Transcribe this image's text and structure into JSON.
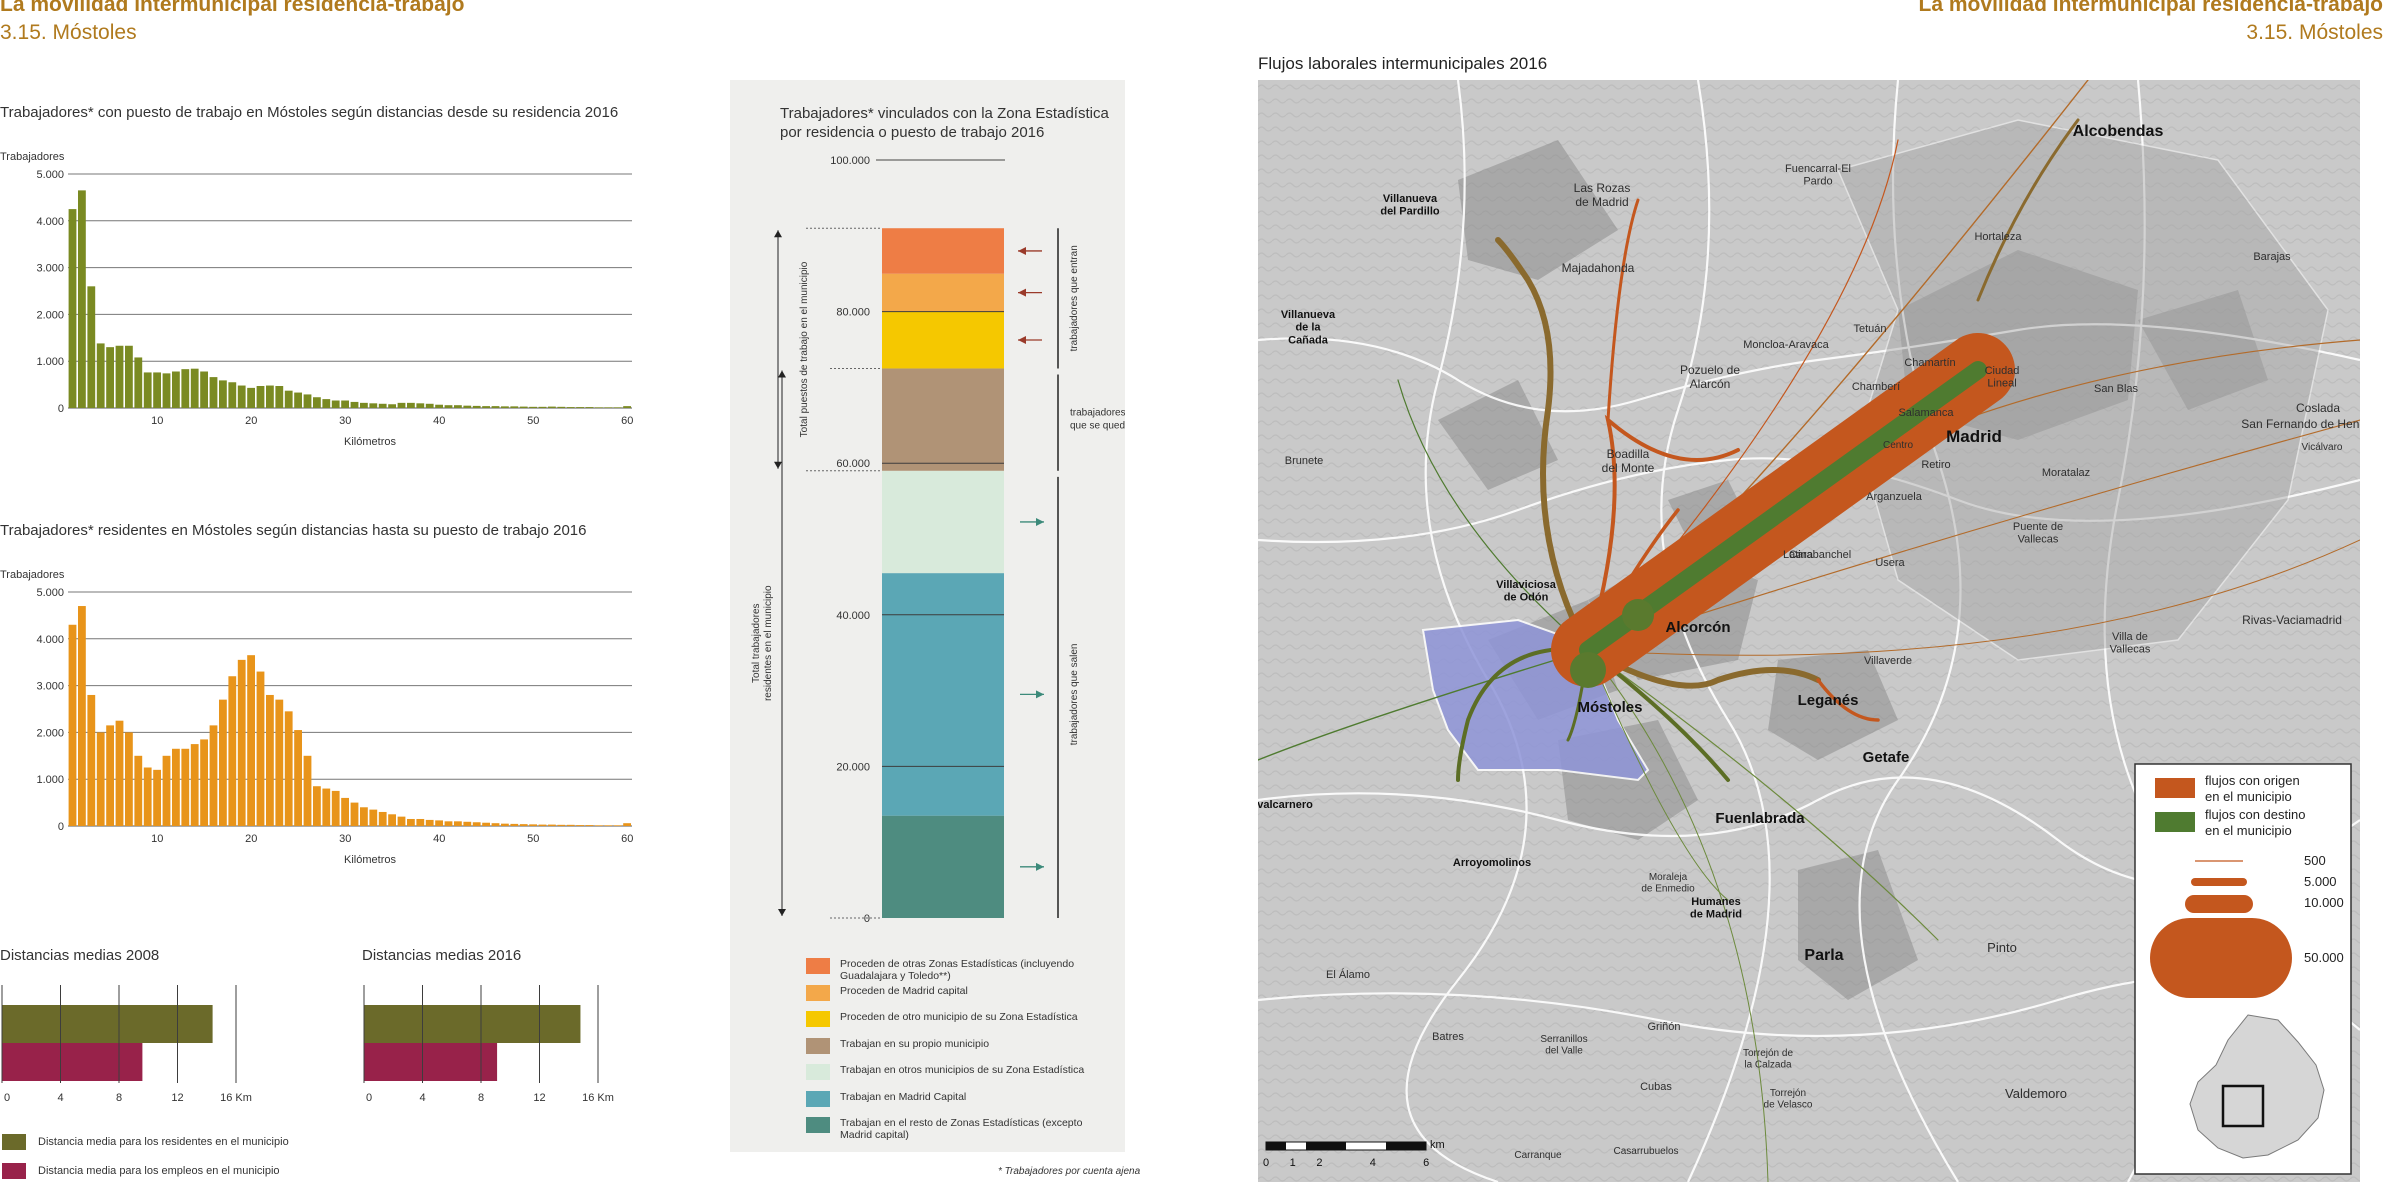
{
  "header": {
    "left_title": "La movilidad intermunicipal residencia-trabajo",
    "left_subtitle": "3.15. Móstoles",
    "right_title": "La movilidad intermunicipal residencia-trabajo",
    "right_subtitle": "3.15. Móstoles"
  },
  "chart_data": [
    {
      "id": "hist_workplace",
      "type": "bar",
      "title": "Trabajadores* con puesto de trabajo en Móstoles según distancias desde su residencia 2016",
      "ylabel": "Trabajadores",
      "xlabel": "Kilómetros",
      "color": "#7a8a22",
      "ylim": [
        0,
        5000
      ],
      "yticks": [
        "0",
        "1.000",
        "2.000",
        "3.000",
        "4.000",
        "5.000"
      ],
      "xticks": [
        10,
        20,
        30,
        40,
        50,
        60
      ],
      "x": [
        1,
        2,
        3,
        4,
        5,
        6,
        7,
        8,
        9,
        10,
        11,
        12,
        13,
        14,
        15,
        16,
        17,
        18,
        19,
        20,
        21,
        22,
        23,
        24,
        25,
        26,
        27,
        28,
        29,
        30,
        31,
        32,
        33,
        34,
        35,
        36,
        37,
        38,
        39,
        40,
        41,
        42,
        43,
        44,
        45,
        46,
        47,
        48,
        49,
        50,
        51,
        52,
        53,
        54,
        55,
        56,
        57,
        58,
        59,
        60
      ],
      "values": [
        4250,
        4650,
        2600,
        1380,
        1300,
        1330,
        1330,
        1080,
        760,
        760,
        740,
        780,
        830,
        840,
        780,
        660,
        590,
        550,
        480,
        430,
        470,
        480,
        470,
        370,
        330,
        290,
        230,
        190,
        160,
        160,
        130,
        110,
        100,
        90,
        80,
        110,
        110,
        100,
        90,
        70,
        60,
        60,
        50,
        45,
        40,
        40,
        35,
        35,
        30,
        25,
        25,
        30,
        25,
        20,
        20,
        20,
        15,
        15,
        15,
        40
      ]
    },
    {
      "id": "hist_residence",
      "type": "bar",
      "title": "Trabajadores* residentes en Móstoles según distancias hasta su puesto de trabajo 2016",
      "ylabel": "Trabajadores",
      "xlabel": "Kilómetros",
      "color": "#e8941a",
      "ylim": [
        0,
        5000
      ],
      "yticks": [
        "0",
        "1.000",
        "2.000",
        "3.000",
        "4.000",
        "5.000"
      ],
      "xticks": [
        10,
        20,
        30,
        40,
        50,
        60
      ],
      "x": [
        1,
        2,
        3,
        4,
        5,
        6,
        7,
        8,
        9,
        10,
        11,
        12,
        13,
        14,
        15,
        16,
        17,
        18,
        19,
        20,
        21,
        22,
        23,
        24,
        25,
        26,
        27,
        28,
        29,
        30,
        31,
        32,
        33,
        34,
        35,
        36,
        37,
        38,
        39,
        40,
        41,
        42,
        43,
        44,
        45,
        46,
        47,
        48,
        49,
        50,
        51,
        52,
        53,
        54,
        55,
        56,
        57,
        58,
        59,
        60
      ],
      "values": [
        4300,
        4700,
        2800,
        2000,
        2150,
        2250,
        2000,
        1500,
        1250,
        1200,
        1500,
        1650,
        1650,
        1750,
        1850,
        2150,
        2700,
        3200,
        3550,
        3650,
        3300,
        2800,
        2700,
        2450,
        2050,
        1500,
        850,
        800,
        750,
        600,
        500,
        400,
        350,
        300,
        250,
        200,
        150,
        150,
        130,
        120,
        100,
        100,
        90,
        80,
        70,
        60,
        50,
        45,
        40,
        35,
        30,
        30,
        25,
        25,
        20,
        20,
        15,
        15,
        15,
        60
      ]
    },
    {
      "id": "stacked_zone",
      "type": "bar",
      "title": "Trabajadores* vinculados con la Zona Estadística por residencia o puesto de trabajo 2016",
      "ylim": [
        0,
        100000
      ],
      "yticks": [
        "0",
        "20.000",
        "40.000",
        "60.000",
        "80.000",
        "100.000"
      ],
      "segments": [
        {
          "name": "Trabajan en el resto de Zonas Estadísticas (excepto Madrid capital)",
          "value": 13500,
          "color": "#4e8c80"
        },
        {
          "name": "Trabajan en Madrid Capital",
          "value": 32000,
          "color": "#5ba7b5"
        },
        {
          "name": "Trabajan en otros municipios de su Zona Estadística",
          "value": 13500,
          "color": "#d8eadb"
        },
        {
          "name": "Trabajan en su propio municipio",
          "value": 13500,
          "color": "#b09376"
        },
        {
          "name": "Proceden de otro municipio de su Zona Estadística",
          "value": 7500,
          "color": "#f5c800"
        },
        {
          "name": "Proceden de Madrid capital",
          "value": 5000,
          "color": "#f3a84a"
        },
        {
          "name": "Proceden de otras Zonas Estadísticas (incluyendo Guadalajara y Toledo**)",
          "value": 6000,
          "color": "#ee7d45"
        }
      ],
      "side_labels": {
        "total_puestos": "Total puestos de trabajo en el municipio",
        "total_trabajadores": "Total trabajadores residentes en el municipio",
        "entran": "trabajadores que entran",
        "quedan": "trabajadores que se quedan",
        "salen": "trabajadores que salen"
      },
      "legend": [
        {
          "label": "Proceden de otras Zonas Estadísticas (incluyendo Guadalajara y Toledo**)",
          "color": "#ee7d45"
        },
        {
          "label": "Proceden de Madrid capital",
          "color": "#f3a84a"
        },
        {
          "label": "Proceden de otro municipio de su Zona Estadística",
          "color": "#f5c800"
        },
        {
          "label": "Trabajan en su propio municipio",
          "color": "#b09376"
        },
        {
          "label": "Trabajan en otros municipios de su Zona Estadística",
          "color": "#d8eadb"
        },
        {
          "label": "Trabajan en Madrid Capital",
          "color": "#5ba7b5"
        },
        {
          "label": "Trabajan en el resto de Zonas Estadísticas (excepto Madrid capital)",
          "color": "#4e8c80"
        }
      ],
      "footnote": "* Trabajadores por cuenta ajena"
    },
    {
      "id": "dist_2008",
      "type": "bar",
      "title": "Distancias medias 2008",
      "orientation": "horizontal",
      "xlim": [
        0,
        16
      ],
      "xticks": [
        "0",
        "4",
        "8",
        "12",
        "16 Km"
      ],
      "series": [
        {
          "name": "Distancia media para los residentes en el municipio",
          "value": 14.4,
          "color": "#6b6a2a"
        },
        {
          "name": "Distancia media para los empleos en el municipio",
          "value": 9.6,
          "color": "#98224a"
        }
      ]
    },
    {
      "id": "dist_2016",
      "type": "bar",
      "title": "Distancias medias 2016",
      "orientation": "horizontal",
      "xlim": [
        0,
        16
      ],
      "xticks": [
        "0",
        "4",
        "8",
        "12",
        "16 Km"
      ],
      "series": [
        {
          "name": "Distancia media para los residentes en el municipio",
          "value": 14.8,
          "color": "#6b6a2a"
        },
        {
          "name": "Distancia media para los empleos en el municipio",
          "value": 9.1,
          "color": "#98224a"
        }
      ]
    }
  ],
  "distance_legend": [
    {
      "label": "Distancia media para los residentes en el municipio",
      "color": "#6b6a2a"
    },
    {
      "label": "Distancia media para los empleos en el municipio",
      "color": "#98224a"
    }
  ],
  "map": {
    "title": "Flujos laborales intermunicipales 2016",
    "colors": {
      "origin": "#c4571e",
      "destination": "#4f7b30",
      "study_area": "#8f95d8"
    },
    "places": [
      {
        "name": "Alcobendas",
        "bold": true
      },
      {
        "name": "Fuencarral-El Pardo",
        "bold": false
      },
      {
        "name": "Las Rozas de Madrid",
        "bold": false
      },
      {
        "name": "Villanueva del Pardillo",
        "bold": true
      },
      {
        "name": "Hortaleza",
        "bold": false
      },
      {
        "name": "Barajas",
        "bold": false
      },
      {
        "name": "Majadahonda",
        "bold": false
      },
      {
        "name": "Villanueva de la Cañada",
        "bold": true
      },
      {
        "name": "Tetuán",
        "bold": false
      },
      {
        "name": "Moncloa-Aravaca",
        "bold": false
      },
      {
        "name": "Chamartín",
        "bold": false
      },
      {
        "name": "Ciudad Lineal",
        "bold": false
      },
      {
        "name": "Pozuelo de Alarcón",
        "bold": false
      },
      {
        "name": "Chamberí",
        "bold": false
      },
      {
        "name": "San Blas",
        "bold": false
      },
      {
        "name": "Coslada",
        "bold": false
      },
      {
        "name": "San Fernando de Henares",
        "bold": false
      },
      {
        "name": "Salamanca",
        "bold": false
      },
      {
        "name": "Madrid",
        "bold": true
      },
      {
        "name": "Vicálvaro",
        "bold": false
      },
      {
        "name": "Centro",
        "bold": false
      },
      {
        "name": "Brunete",
        "bold": false
      },
      {
        "name": "Boadilla del Monte",
        "bold": false
      },
      {
        "name": "Retiro",
        "bold": false
      },
      {
        "name": "Moratalaz",
        "bold": false
      },
      {
        "name": "Arganzuela",
        "bold": false
      },
      {
        "name": "Puente de Vallecas",
        "bold": false
      },
      {
        "name": "Latina",
        "bold": false
      },
      {
        "name": "Carabanchel",
        "bold": false
      },
      {
        "name": "Usera",
        "bold": false
      },
      {
        "name": "Villaviciosa de Odón",
        "bold": true
      },
      {
        "name": "Alcorcón",
        "bold": true
      },
      {
        "name": "Rivas-Vaciamadrid",
        "bold": false
      },
      {
        "name": "Villa de Vallecas",
        "bold": false
      },
      {
        "name": "Villaverde",
        "bold": false
      },
      {
        "name": "Leganés",
        "bold": true
      },
      {
        "name": "Móstoles",
        "bold": true
      },
      {
        "name": "Getafe",
        "bold": true
      },
      {
        "name": "Navalcarnero",
        "bold": true
      },
      {
        "name": "Fuenlabrada",
        "bold": true
      },
      {
        "name": "Arroyomolinos",
        "bold": true
      },
      {
        "name": "Moraleja de Enmedio",
        "bold": false
      },
      {
        "name": "Humanes de Madrid",
        "bold": true
      },
      {
        "name": "Parla",
        "bold": true
      },
      {
        "name": "Pinto",
        "bold": false
      },
      {
        "name": "El Álamo",
        "bold": false
      },
      {
        "name": "Batres",
        "bold": false
      },
      {
        "name": "Serranillos del Valle",
        "bold": false
      },
      {
        "name": "Griñón",
        "bold": false
      },
      {
        "name": "Torrejón de la Calzada",
        "bold": false
      },
      {
        "name": "Cubas",
        "bold": false
      },
      {
        "name": "Torrejón de Velasco",
        "bold": false
      },
      {
        "name": "Valdemoro",
        "bold": false
      },
      {
        "name": "Carranque",
        "bold": false
      },
      {
        "name": "Casarrubuelos",
        "bold": false
      }
    ],
    "legend": {
      "origin_label": "flujos con origen en el municipio",
      "destination_label": "flujos con destino en el municipio",
      "sizes": [
        "500",
        "5.000",
        "10.000",
        "50.000"
      ]
    },
    "scale": {
      "unit": "km",
      "ticks": [
        "0",
        "1",
        "2",
        "4",
        "6"
      ]
    }
  }
}
